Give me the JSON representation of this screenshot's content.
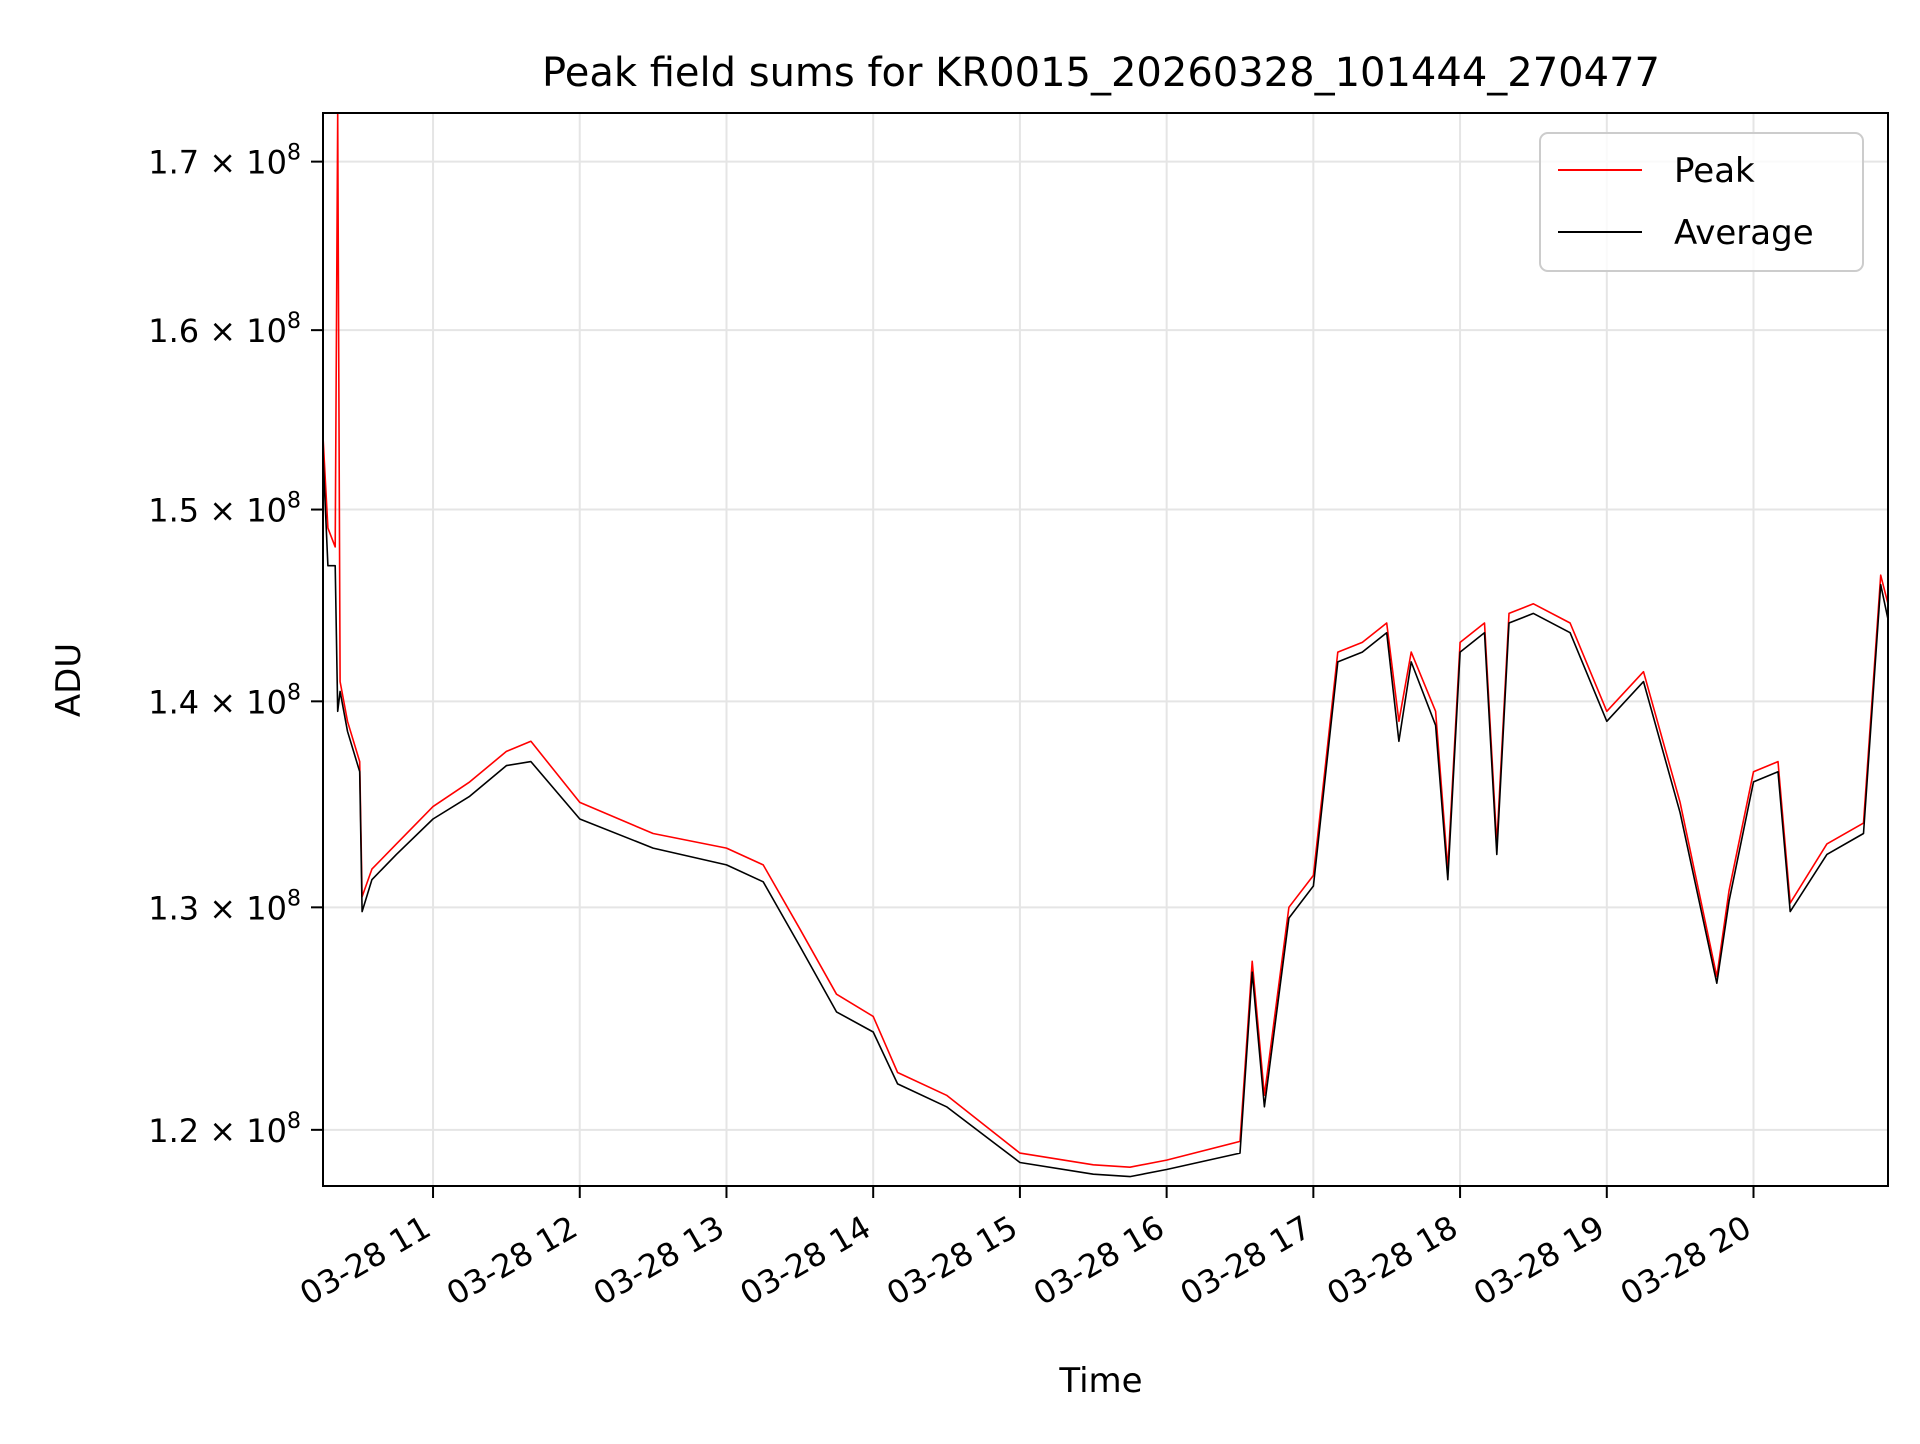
{
  "chart_data": {
    "type": "line",
    "title": "Peak field sums for KR0015_20260328_101444_270477",
    "xlabel": "Time",
    "ylabel": "ADU",
    "yscale": "log",
    "grid": true,
    "legend_position": "top-right",
    "xlim": [
      "2026-03-28 10:15",
      "2026-03-28 20:55"
    ],
    "ylim": [
      117600000,
      173000000
    ],
    "x_ticks": [
      {
        "value": "2026-03-28 11:00",
        "label": "03-28 11"
      },
      {
        "value": "2026-03-28 12:00",
        "label": "03-28 12"
      },
      {
        "value": "2026-03-28 13:00",
        "label": "03-28 13"
      },
      {
        "value": "2026-03-28 14:00",
        "label": "03-28 14"
      },
      {
        "value": "2026-03-28 15:00",
        "label": "03-28 15"
      },
      {
        "value": "2026-03-28 16:00",
        "label": "03-28 16"
      },
      {
        "value": "2026-03-28 17:00",
        "label": "03-28 17"
      },
      {
        "value": "2026-03-28 18:00",
        "label": "03-28 18"
      },
      {
        "value": "2026-03-28 19:00",
        "label": "03-28 19"
      },
      {
        "value": "2026-03-28 20:00",
        "label": "03-28 20"
      }
    ],
    "y_ticks": [
      {
        "value": 120000000,
        "mantissa": "1.2",
        "base": "10",
        "exp": "8"
      },
      {
        "value": 130000000,
        "mantissa": "1.3",
        "base": "10",
        "exp": "8"
      },
      {
        "value": 140000000,
        "mantissa": "1.4",
        "base": "10",
        "exp": "8"
      },
      {
        "value": 150000000,
        "mantissa": "1.5",
        "base": "10",
        "exp": "8"
      },
      {
        "value": 160000000,
        "mantissa": "1.6",
        "base": "10",
        "exp": "8"
      },
      {
        "value": 170000000,
        "mantissa": "1.7",
        "base": "10",
        "exp": "8"
      }
    ],
    "series": [
      {
        "name": "Peak",
        "color": "#ff0000",
        "x": [
          "2026-03-28 10:15",
          "2026-03-28 10:17",
          "2026-03-28 10:20",
          "2026-03-28 10:21",
          "2026-03-28 10:22",
          "2026-03-28 10:25",
          "2026-03-28 10:30",
          "2026-03-28 10:31",
          "2026-03-28 10:35",
          "2026-03-28 10:45",
          "2026-03-28 11:00",
          "2026-03-28 11:15",
          "2026-03-28 11:30",
          "2026-03-28 11:40",
          "2026-03-28 12:00",
          "2026-03-28 12:30",
          "2026-03-28 13:00",
          "2026-03-28 13:15",
          "2026-03-28 13:30",
          "2026-03-28 13:45",
          "2026-03-28 14:00",
          "2026-03-28 14:10",
          "2026-03-28 14:30",
          "2026-03-28 15:00",
          "2026-03-28 15:30",
          "2026-03-28 15:45",
          "2026-03-28 16:00",
          "2026-03-28 16:30",
          "2026-03-28 16:35",
          "2026-03-28 16:40",
          "2026-03-28 16:50",
          "2026-03-28 17:00",
          "2026-03-28 17:10",
          "2026-03-28 17:20",
          "2026-03-28 17:30",
          "2026-03-28 17:35",
          "2026-03-28 17:40",
          "2026-03-28 17:50",
          "2026-03-28 17:55",
          "2026-03-28 18:00",
          "2026-03-28 18:10",
          "2026-03-28 18:15",
          "2026-03-28 18:20",
          "2026-03-28 18:30",
          "2026-03-28 18:45",
          "2026-03-28 19:00",
          "2026-03-28 19:15",
          "2026-03-28 19:30",
          "2026-03-28 19:45",
          "2026-03-28 19:50",
          "2026-03-28 20:00",
          "2026-03-28 20:10",
          "2026-03-28 20:15",
          "2026-03-28 20:30",
          "2026-03-28 20:45",
          "2026-03-28 20:52",
          "2026-03-28 20:55"
        ],
        "values": [
          154000000,
          149000000,
          148000000,
          173000000,
          141000000,
          139000000,
          137000000,
          130500000,
          131800000,
          133000000,
          134800000,
          136000000,
          137500000,
          138000000,
          135000000,
          133500000,
          132800000,
          132000000,
          129000000,
          126000000,
          125000000,
          122500000,
          121500000,
          119000000,
          118500000,
          118400000,
          118700000,
          119500000,
          127500000,
          121500000,
          130000000,
          131500000,
          142500000,
          143000000,
          144000000,
          139000000,
          142500000,
          139500000,
          131800000,
          143000000,
          144000000,
          133000000,
          144500000,
          145000000,
          144000000,
          139500000,
          141500000,
          135000000,
          126800000,
          130800000,
          136500000,
          137000000,
          130200000,
          133000000,
          134000000,
          146500000,
          145000000
        ]
      },
      {
        "name": "Average",
        "color": "#000000",
        "x": [
          "2026-03-28 10:15",
          "2026-03-28 10:17",
          "2026-03-28 10:20",
          "2026-03-28 10:21",
          "2026-03-28 10:22",
          "2026-03-28 10:25",
          "2026-03-28 10:30",
          "2026-03-28 10:31",
          "2026-03-28 10:35",
          "2026-03-28 10:45",
          "2026-03-28 11:00",
          "2026-03-28 11:15",
          "2026-03-28 11:30",
          "2026-03-28 11:40",
          "2026-03-28 12:00",
          "2026-03-28 12:30",
          "2026-03-28 13:00",
          "2026-03-28 13:15",
          "2026-03-28 13:30",
          "2026-03-28 13:45",
          "2026-03-28 14:00",
          "2026-03-28 14:10",
          "2026-03-28 14:30",
          "2026-03-28 15:00",
          "2026-03-28 15:30",
          "2026-03-28 15:45",
          "2026-03-28 16:00",
          "2026-03-28 16:30",
          "2026-03-28 16:35",
          "2026-03-28 16:40",
          "2026-03-28 16:50",
          "2026-03-28 17:00",
          "2026-03-28 17:10",
          "2026-03-28 17:20",
          "2026-03-28 17:30",
          "2026-03-28 17:35",
          "2026-03-28 17:40",
          "2026-03-28 17:50",
          "2026-03-28 17:55",
          "2026-03-28 18:00",
          "2026-03-28 18:10",
          "2026-03-28 18:15",
          "2026-03-28 18:20",
          "2026-03-28 18:30",
          "2026-03-28 18:45",
          "2026-03-28 19:00",
          "2026-03-28 19:15",
          "2026-03-28 19:30",
          "2026-03-28 19:45",
          "2026-03-28 19:50",
          "2026-03-28 20:00",
          "2026-03-28 20:10",
          "2026-03-28 20:15",
          "2026-03-28 20:30",
          "2026-03-28 20:45",
          "2026-03-28 20:52",
          "2026-03-28 20:55"
        ],
        "values": [
          153000000,
          147000000,
          147000000,
          139500000,
          140500000,
          138500000,
          136500000,
          129800000,
          131300000,
          132500000,
          134200000,
          135300000,
          136800000,
          137000000,
          134200000,
          132800000,
          132000000,
          131200000,
          128200000,
          125200000,
          124300000,
          122000000,
          121000000,
          118600000,
          118100000,
          118000000,
          118300000,
          119000000,
          127000000,
          121000000,
          129500000,
          131000000,
          142000000,
          142500000,
          143500000,
          138000000,
          142000000,
          138800000,
          131300000,
          142500000,
          143500000,
          132500000,
          144000000,
          144500000,
          143500000,
          139000000,
          141000000,
          134500000,
          126500000,
          130300000,
          136000000,
          136500000,
          129800000,
          132500000,
          133500000,
          146000000,
          144200000
        ]
      }
    ]
  }
}
